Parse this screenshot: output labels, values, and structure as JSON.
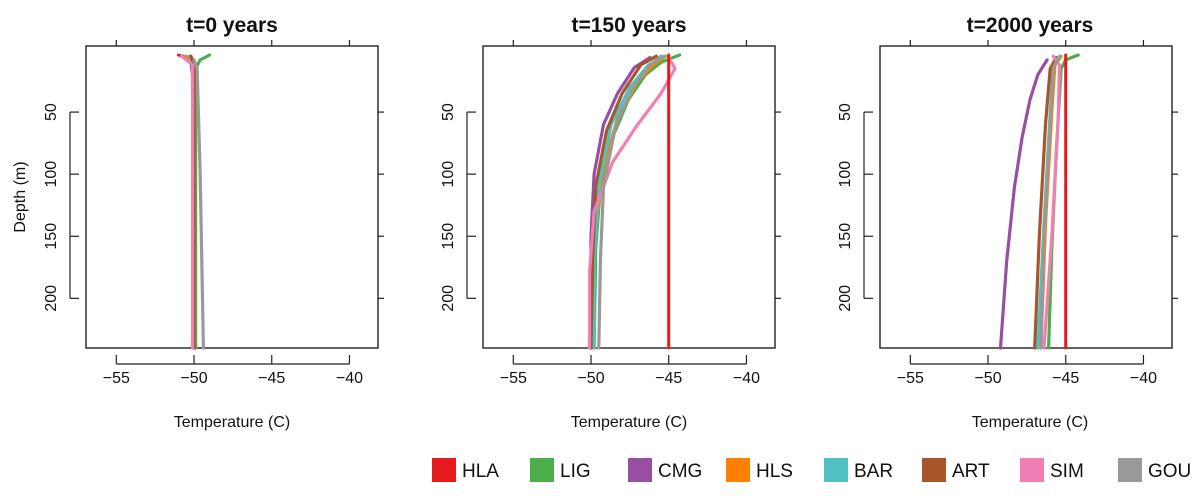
{
  "chart_data": [
    {
      "type": "line",
      "title": "t=0 years",
      "xlabel": "Temperature (C)",
      "ylabel": "Depth (m)",
      "xlim": [
        -56.5,
        -39
      ],
      "ylim": [
        240,
        0
      ],
      "xticks": [
        -55,
        -50,
        -45,
        -40
      ],
      "xtick_labels": [
        "−55",
        "−50",
        "−45",
        "−40"
      ],
      "yticks": [
        50,
        100,
        150,
        200
      ],
      "ytick_labels": [
        "50",
        "100",
        "150",
        "200"
      ],
      "series": [
        {
          "name": "HLA",
          "points": [
            [
              -51.0,
              4
            ],
            [
              -50.0,
              8
            ],
            [
              -50.0,
              240
            ]
          ]
        },
        {
          "name": "LIG",
          "points": [
            [
              -49.0,
              4
            ],
            [
              -49.6,
              8
            ],
            [
              -49.9,
              15
            ],
            [
              -49.9,
              240
            ]
          ]
        },
        {
          "name": "CMG",
          "points": [
            [
              -50.7,
              5
            ],
            [
              -50.2,
              10
            ],
            [
              -50.1,
              20
            ],
            [
              -50.0,
              240
            ]
          ]
        },
        {
          "name": "HLS",
          "points": [
            [
              -50.5,
              5
            ],
            [
              -50.0,
              12
            ],
            [
              -50.0,
              240
            ]
          ]
        },
        {
          "name": "BAR",
          "points": [
            [
              -50.3,
              5
            ],
            [
              -50.0,
              12
            ],
            [
              -50.0,
              240
            ]
          ]
        },
        {
          "name": "ART",
          "points": [
            [
              -50.2,
              5
            ],
            [
              -50.0,
              12
            ],
            [
              -50.0,
              240
            ]
          ]
        },
        {
          "name": "SIM",
          "points": [
            [
              -50.8,
              5
            ],
            [
              -50.1,
              12
            ],
            [
              -50.1,
              240
            ]
          ]
        },
        {
          "name": "GOU",
          "points": [
            [
              -50.0,
              8
            ],
            [
              -49.8,
              15
            ],
            [
              -49.6,
              100
            ],
            [
              -49.4,
              240
            ]
          ]
        }
      ]
    },
    {
      "type": "line",
      "title": "t=150 years",
      "xlabel": "Temperature (C)",
      "ylabel": "",
      "xlim": [
        -56.5,
        -39
      ],
      "ylim": [
        240,
        0
      ],
      "xticks": [
        -55,
        -50,
        -45,
        -40
      ],
      "xtick_labels": [
        "−55",
        "−50",
        "−45",
        "−40"
      ],
      "yticks": [
        50,
        100,
        150,
        200
      ],
      "ytick_labels": [
        "50",
        "100",
        "150",
        "200"
      ],
      "series": [
        {
          "name": "HLA",
          "points": [
            [
              -45.0,
              4
            ],
            [
              -45.0,
              240
            ]
          ]
        },
        {
          "name": "LIG",
          "points": [
            [
              -44.3,
              4
            ],
            [
              -45.5,
              10
            ],
            [
              -46.5,
              20
            ],
            [
              -47.6,
              40
            ],
            [
              -48.6,
              70
            ],
            [
              -49.4,
              110
            ],
            [
              -49.7,
              160
            ],
            [
              -49.8,
              240
            ]
          ]
        },
        {
          "name": "CMG",
          "points": [
            [
              -46.2,
              6
            ],
            [
              -47.2,
              14
            ],
            [
              -48.3,
              35
            ],
            [
              -49.2,
              60
            ],
            [
              -49.8,
              100
            ],
            [
              -50.0,
              150
            ],
            [
              -50.0,
              240
            ]
          ]
        },
        {
          "name": "HLS",
          "points": [
            [
              -45.2,
              5
            ],
            [
              -46.0,
              12
            ],
            [
              -47.0,
              25
            ],
            [
              -48.3,
              55
            ],
            [
              -49.3,
              100
            ],
            [
              -49.8,
              160
            ],
            [
              -49.9,
              240
            ]
          ]
        },
        {
          "name": "BAR",
          "points": [
            [
              -45.3,
              5
            ],
            [
              -46.3,
              12
            ],
            [
              -47.5,
              30
            ],
            [
              -48.7,
              60
            ],
            [
              -49.5,
              110
            ],
            [
              -49.8,
              170
            ],
            [
              -49.8,
              240
            ]
          ]
        },
        {
          "name": "ART",
          "points": [
            [
              -45.8,
              5
            ],
            [
              -46.8,
              12
            ],
            [
              -48.0,
              35
            ],
            [
              -49.0,
              65
            ],
            [
              -49.7,
              110
            ],
            [
              -49.9,
              170
            ],
            [
              -50.0,
              240
            ]
          ]
        },
        {
          "name": "SIM",
          "points": [
            [
              -45.0,
              6
            ],
            [
              -44.6,
              15
            ],
            [
              -45.5,
              35
            ],
            [
              -47.0,
              60
            ],
            [
              -48.6,
              90
            ],
            [
              -49.8,
              130
            ],
            [
              -50.1,
              180
            ],
            [
              -50.1,
              240
            ]
          ]
        },
        {
          "name": "GOU",
          "points": [
            [
              -45.5,
              5
            ],
            [
              -46.2,
              12
            ],
            [
              -47.3,
              30
            ],
            [
              -48.4,
              60
            ],
            [
              -49.2,
              110
            ],
            [
              -49.4,
              170
            ],
            [
              -49.5,
              240
            ]
          ]
        }
      ]
    },
    {
      "type": "line",
      "title": "t=2000 years",
      "xlabel": "Temperature (C)",
      "ylabel": "",
      "xlim": [
        -56.5,
        -39
      ],
      "ylim": [
        240,
        0
      ],
      "xticks": [
        -55,
        -50,
        -45,
        -40
      ],
      "xtick_labels": [
        "−55",
        "−50",
        "−45",
        "−40"
      ],
      "yticks": [
        50,
        100,
        150,
        200
      ],
      "ytick_labels": [
        "50",
        "100",
        "150",
        "200"
      ],
      "series": [
        {
          "name": "HLA",
          "points": [
            [
              -45.0,
              4
            ],
            [
              -45.0,
              240
            ]
          ]
        },
        {
          "name": "LIG",
          "points": [
            [
              -44.2,
              4
            ],
            [
              -45.0,
              8
            ],
            [
              -45.3,
              15
            ],
            [
              -45.6,
              80
            ],
            [
              -45.9,
              160
            ],
            [
              -46.1,
              240
            ]
          ]
        },
        {
          "name": "CMG",
          "points": [
            [
              -46.2,
              8
            ],
            [
              -46.8,
              20
            ],
            [
              -47.3,
              40
            ],
            [
              -47.8,
              70
            ],
            [
              -48.3,
              110
            ],
            [
              -48.8,
              170
            ],
            [
              -49.2,
              240
            ]
          ]
        },
        {
          "name": "HLS",
          "points": [
            [
              -45.3,
              5
            ],
            [
              -45.7,
              12
            ],
            [
              -45.9,
              50
            ],
            [
              -46.3,
              140
            ],
            [
              -46.6,
              240
            ]
          ]
        },
        {
          "name": "BAR",
          "points": [
            [
              -45.4,
              5
            ],
            [
              -45.8,
              12
            ],
            [
              -46.0,
              50
            ],
            [
              -46.4,
              140
            ],
            [
              -46.8,
              240
            ]
          ]
        },
        {
          "name": "ART",
          "points": [
            [
              -45.6,
              6
            ],
            [
              -46.0,
              15
            ],
            [
              -46.3,
              60
            ],
            [
              -46.7,
              150
            ],
            [
              -47.0,
              240
            ]
          ]
        },
        {
          "name": "SIM",
          "points": [
            [
              -45.8,
              5
            ],
            [
              -45.4,
              12
            ],
            [
              -45.5,
              60
            ],
            [
              -45.9,
              150
            ],
            [
              -46.4,
              240
            ]
          ]
        },
        {
          "name": "GOU",
          "points": [
            [
              -45.5,
              6
            ],
            [
              -45.8,
              15
            ],
            [
              -46.0,
              60
            ],
            [
              -46.4,
              150
            ],
            [
              -46.6,
              240
            ]
          ]
        }
      ]
    }
  ],
  "legend": {
    "placement": "bottom-right",
    "entries": [
      {
        "name": "HLA",
        "color": "#e41a1c"
      },
      {
        "name": "LIG",
        "color": "#4daf4a"
      },
      {
        "name": "CMG",
        "color": "#984ea3"
      },
      {
        "name": "HLS",
        "color": "#ff7f00"
      },
      {
        "name": "BAR",
        "color": "#4fc1c4"
      },
      {
        "name": "ART",
        "color": "#a65628"
      },
      {
        "name": "SIM",
        "color": "#f07fb6"
      },
      {
        "name": "GOU",
        "color": "#999999"
      }
    ]
  }
}
